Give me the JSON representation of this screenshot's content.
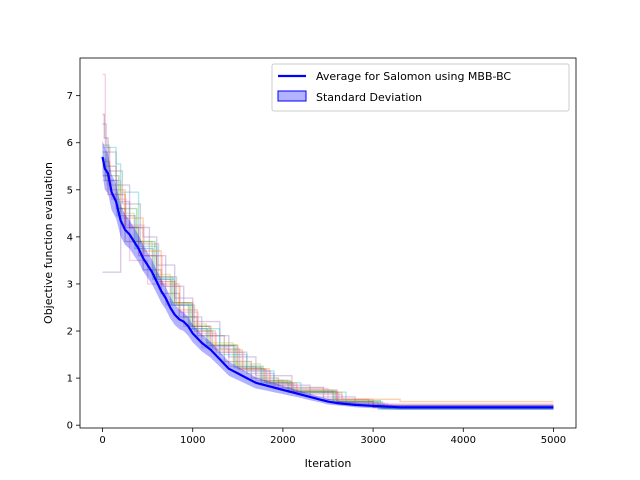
{
  "chart_data": {
    "type": "line",
    "xlabel": "Iteration",
    "ylabel": "Objective function evaluation",
    "xlim": [
      -250,
      5250
    ],
    "ylim": [
      -0.06,
      7.8
    ],
    "xticks": [
      0,
      1000,
      2000,
      3000,
      4000,
      5000
    ],
    "yticks": [
      0,
      1,
      2,
      3,
      4,
      5,
      6,
      7
    ],
    "grid": false,
    "legend_position": "top-right",
    "legend": [
      {
        "label": "Average for Salomon using MBB-BC",
        "color": "#0000ff",
        "kind": "line"
      },
      {
        "label": "Standard Deviation",
        "color": "#0000ff",
        "kind": "band"
      }
    ],
    "average": {
      "x": [
        0,
        25,
        60,
        100,
        150,
        200,
        250,
        300,
        350,
        400,
        450,
        500,
        550,
        600,
        650,
        700,
        750,
        800,
        850,
        900,
        950,
        1000,
        1100,
        1200,
        1300,
        1400,
        1500,
        1600,
        1700,
        1800,
        1900,
        2000,
        2100,
        2200,
        2300,
        2400,
        2500,
        2600,
        2700,
        2800,
        2900,
        3000,
        3100,
        3200,
        3300,
        3400,
        3600,
        4000,
        4500,
        5000
      ],
      "y": [
        5.7,
        5.45,
        5.35,
        4.95,
        4.75,
        4.35,
        4.15,
        4.05,
        3.9,
        3.75,
        3.55,
        3.4,
        3.25,
        3.05,
        2.85,
        2.7,
        2.5,
        2.35,
        2.25,
        2.2,
        2.1,
        1.95,
        1.75,
        1.6,
        1.4,
        1.2,
        1.1,
        1.0,
        0.9,
        0.85,
        0.8,
        0.75,
        0.7,
        0.65,
        0.6,
        0.55,
        0.5,
        0.47,
        0.45,
        0.43,
        0.42,
        0.41,
        0.4,
        0.39,
        0.38,
        0.38,
        0.38,
        0.38,
        0.38,
        0.38
      ]
    },
    "std": [
      0.35,
      0.45,
      0.42,
      0.38,
      0.36,
      0.34,
      0.32,
      0.3,
      0.3,
      0.29,
      0.28,
      0.27,
      0.26,
      0.25,
      0.25,
      0.24,
      0.23,
      0.22,
      0.21,
      0.2,
      0.2,
      0.19,
      0.18,
      0.17,
      0.16,
      0.15,
      0.14,
      0.13,
      0.12,
      0.11,
      0.1,
      0.09,
      0.08,
      0.07,
      0.07,
      0.06,
      0.06,
      0.05,
      0.05,
      0.05,
      0.05,
      0.05,
      0.05,
      0.05,
      0.05,
      0.05,
      0.05,
      0.05,
      0.05,
      0.05
    ],
    "runs": [
      {
        "color": "#e377c2",
        "x": [
          0,
          30,
          80,
          200,
          300,
          500,
          700,
          900,
          1100,
          1400,
          1700,
          2000,
          2500,
          3000,
          5000
        ],
        "y": [
          7.45,
          5.9,
          5.2,
          4.4,
          3.5,
          3.0,
          2.55,
          2.1,
          1.65,
          1.25,
          0.95,
          0.78,
          0.55,
          0.45,
          0.45
        ]
      },
      {
        "color": "#8c564b",
        "x": [
          0,
          20,
          60,
          150,
          250,
          450,
          650,
          850,
          1050,
          1350,
          1650,
          1950,
          2450,
          2950,
          5000
        ],
        "y": [
          6.6,
          6.1,
          5.5,
          4.6,
          3.9,
          3.3,
          2.8,
          2.3,
          1.9,
          1.35,
          1.0,
          0.8,
          0.55,
          0.42,
          0.42
        ]
      },
      {
        "color": "#9467bd",
        "x": [
          0,
          200,
          201,
          300,
          520,
          700,
          900,
          1100,
          1400,
          1700,
          2100,
          2600,
          3000,
          5000
        ],
        "y": [
          3.25,
          3.25,
          4.75,
          4.2,
          3.6,
          2.95,
          2.3,
          1.9,
          1.45,
          1.05,
          0.75,
          0.5,
          0.38,
          0.38
        ]
      },
      {
        "color": "#9467bd",
        "x": [
          0,
          40,
          150,
          300,
          450,
          600,
          800,
          1000,
          1300,
          1600,
          1900,
          2300,
          2800,
          5000
        ],
        "y": [
          6.4,
          5.8,
          5.1,
          4.2,
          4.0,
          3.4,
          2.7,
          2.2,
          1.55,
          1.1,
          0.85,
          0.6,
          0.42,
          0.42
        ]
      },
      {
        "color": "#17becf",
        "x": [
          0,
          150,
          200,
          400,
          600,
          800,
          1000,
          1300,
          1600,
          1900,
          2200,
          2700,
          3100,
          5000
        ],
        "y": [
          5.9,
          5.55,
          4.95,
          3.8,
          3.1,
          2.55,
          2.05,
          1.5,
          1.15,
          0.9,
          0.7,
          0.5,
          0.35,
          0.35
        ]
      },
      {
        "color": "#bcbd22",
        "x": [
          0,
          50,
          200,
          350,
          550,
          750,
          950,
          1150,
          1450,
          1750,
          2050,
          2550,
          3050,
          5000
        ],
        "y": [
          5.5,
          5.1,
          4.5,
          3.9,
          3.2,
          2.6,
          2.15,
          1.75,
          1.3,
          0.95,
          0.75,
          0.5,
          0.4,
          0.4
        ]
      },
      {
        "color": "#d62728",
        "x": [
          0,
          60,
          250,
          400,
          600,
          800,
          1000,
          1200,
          1500,
          1800,
          2100,
          2600,
          3000,
          5000
        ],
        "y": [
          5.3,
          4.9,
          4.2,
          3.6,
          3.05,
          2.6,
          2.1,
          1.7,
          1.2,
          0.92,
          0.72,
          0.5,
          0.38,
          0.38
        ]
      },
      {
        "color": "#ff7f0e",
        "x": [
          0,
          80,
          250,
          450,
          650,
          850,
          1050,
          1250,
          1550,
          1850,
          2150,
          2650,
          3300,
          5000
        ],
        "y": [
          5.6,
          5.0,
          4.4,
          3.7,
          3.0,
          2.45,
          2.0,
          1.6,
          1.2,
          0.9,
          0.7,
          0.55,
          0.5,
          0.5
        ]
      },
      {
        "color": "#2ca02c",
        "x": [
          0,
          40,
          180,
          380,
          580,
          780,
          980,
          1180,
          1480,
          1780,
          2080,
          2580,
          3080,
          5000
        ],
        "y": [
          5.8,
          5.3,
          4.6,
          3.9,
          3.15,
          2.6,
          2.1,
          1.7,
          1.25,
          0.95,
          0.72,
          0.52,
          0.36,
          0.36
        ]
      },
      {
        "color": "#1f77b4",
        "x": [
          0,
          30,
          160,
          360,
          560,
          760,
          960,
          1160,
          1460,
          1760,
          2060,
          2560,
          3060,
          5000
        ],
        "y": [
          5.65,
          5.2,
          4.45,
          3.75,
          3.1,
          2.55,
          2.05,
          1.68,
          1.22,
          0.9,
          0.7,
          0.48,
          0.34,
          0.34
        ]
      },
      {
        "color": "#7f7f7f",
        "x": [
          0,
          70,
          220,
          420,
          620,
          820,
          1020,
          1220,
          1520,
          1820,
          2120,
          2620,
          3120,
          5000
        ],
        "y": [
          5.95,
          5.4,
          4.7,
          3.85,
          3.15,
          2.55,
          2.0,
          1.62,
          1.18,
          0.88,
          0.68,
          0.47,
          0.37,
          0.37
        ]
      },
      {
        "color": "#e377c2",
        "x": [
          0,
          100,
          260,
          460,
          660,
          860,
          1060,
          1260,
          1560,
          1860,
          2160,
          2660,
          3160,
          5000
        ],
        "y": [
          5.2,
          4.8,
          4.25,
          3.6,
          2.95,
          2.4,
          1.95,
          1.55,
          1.15,
          0.85,
          0.65,
          0.46,
          0.39,
          0.39
        ]
      }
    ]
  }
}
